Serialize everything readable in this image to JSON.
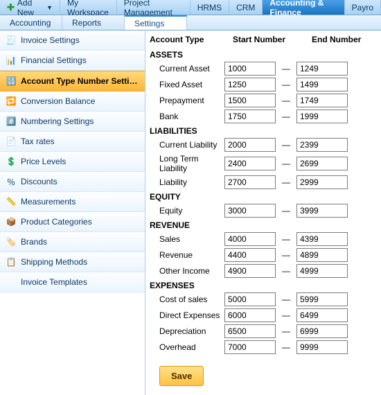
{
  "topmenu": {
    "add_new": "Add New",
    "items": [
      {
        "key": "workspace",
        "label": "My Workspace"
      },
      {
        "key": "pm",
        "label": "Project Management"
      },
      {
        "key": "hrms",
        "label": "HRMS"
      },
      {
        "key": "crm",
        "label": "CRM"
      },
      {
        "key": "af",
        "label": "Accounting & Finance",
        "active": true
      },
      {
        "key": "payroll",
        "label": "Payro"
      }
    ]
  },
  "subtabs": [
    {
      "key": "accounting",
      "label": "Accounting"
    },
    {
      "key": "reports",
      "label": "Reports"
    },
    {
      "key": "settings",
      "label": "Settings",
      "active": true
    }
  ],
  "sidebar": [
    {
      "key": "invoice_settings",
      "label": "Invoice Settings",
      "icon": "invoice"
    },
    {
      "key": "financial_settings",
      "label": "Financial Settings",
      "icon": "financial"
    },
    {
      "key": "account_type_numbers",
      "label": "Account Type Number Settings",
      "icon": "account-number",
      "active": true
    },
    {
      "key": "conversion_balance",
      "label": "Conversion Balance",
      "icon": "conversion"
    },
    {
      "key": "numbering_settings",
      "label": "Numbering Settings",
      "icon": "numbering"
    },
    {
      "key": "tax_rates",
      "label": "Tax rates",
      "icon": "tax"
    },
    {
      "key": "price_levels",
      "label": "Price Levels",
      "icon": "price"
    },
    {
      "key": "discounts",
      "label": "Discounts",
      "icon": "discount"
    },
    {
      "key": "measurements",
      "label": "Measurements",
      "icon": "measure"
    },
    {
      "key": "product_categories",
      "label": "Product Categories",
      "icon": "category"
    },
    {
      "key": "brands",
      "label": "Brands",
      "icon": "brand"
    },
    {
      "key": "shipping_methods",
      "label": "Shipping Methods",
      "icon": "shipping"
    },
    {
      "key": "invoice_templates",
      "label": "Invoice Templates",
      "icon": "none"
    }
  ],
  "columns": {
    "c1": "Account Type",
    "c2": "Start Number",
    "c3": "",
    "c4": "End Number"
  },
  "sections": [
    {
      "title": "ASSETS",
      "rows": [
        {
          "label": "Current Asset",
          "start": "1000",
          "end": "1249"
        },
        {
          "label": "Fixed Asset",
          "start": "1250",
          "end": "1499"
        },
        {
          "label": "Prepayment",
          "start": "1500",
          "end": "1749"
        },
        {
          "label": "Bank",
          "start": "1750",
          "end": "1999"
        }
      ]
    },
    {
      "title": "LIABILITIES",
      "rows": [
        {
          "label": "Current Liability",
          "start": "2000",
          "end": "2399"
        },
        {
          "label": "Long Term Liability",
          "start": "2400",
          "end": "2699"
        },
        {
          "label": "Liability",
          "start": "2700",
          "end": "2999"
        }
      ]
    },
    {
      "title": "EQUITY",
      "rows": [
        {
          "label": "Equity",
          "start": "3000",
          "end": "3999"
        }
      ]
    },
    {
      "title": "REVENUE",
      "rows": [
        {
          "label": "Sales",
          "start": "4000",
          "end": "4399"
        },
        {
          "label": "Revenue",
          "start": "4400",
          "end": "4899"
        },
        {
          "label": "Other Income",
          "start": "4900",
          "end": "4999"
        }
      ]
    },
    {
      "title": "EXPENSES",
      "rows": [
        {
          "label": "Cost of sales",
          "start": "5000",
          "end": "5999"
        },
        {
          "label": "Direct Expenses",
          "start": "6000",
          "end": "6499"
        },
        {
          "label": "Depreciation",
          "start": "6500",
          "end": "6999"
        },
        {
          "label": "Overhead",
          "start": "7000",
          "end": "9999"
        }
      ]
    }
  ],
  "save_label": "Save",
  "dash": "—",
  "icons": {
    "invoice": "🧾",
    "financial": "📊",
    "account-number": "🔢",
    "conversion": "🔁",
    "numbering": "#️⃣",
    "tax": "📄",
    "price": "💲",
    "discount": "％",
    "measure": "📏",
    "category": "📦",
    "brand": "🏷️",
    "shipping": "📋",
    "none": ""
  },
  "colors": {
    "menubar_top": "#cde7fb",
    "menubar_bottom": "#a9d2f3",
    "menubar_active_top": "#4aa0e8",
    "menubar_active_bottom": "#1b72c1",
    "sidebar_active_top": "#ffd97a",
    "sidebar_active_bottom": "#ffb638",
    "save_top": "#ffe18a",
    "save_bottom": "#ffc342"
  }
}
